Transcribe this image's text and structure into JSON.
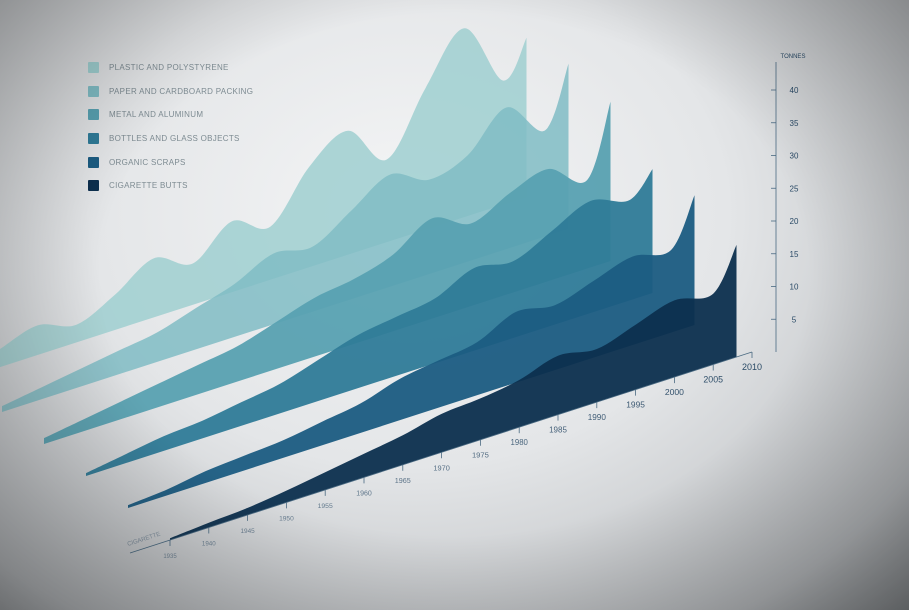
{
  "chart_data": {
    "type": "area",
    "title": "",
    "xlabel": "",
    "ylabel": "TONNES",
    "x_axis_start_label": "CIGARETTE",
    "xlim": [
      1935,
      2010
    ],
    "ylim": [
      0,
      40
    ],
    "x_ticks": [
      1935,
      1940,
      1945,
      1950,
      1955,
      1960,
      1965,
      1970,
      1975,
      1980,
      1985,
      1990,
      1995,
      2000,
      2005,
      2010
    ],
    "y_ticks": [
      5,
      10,
      15,
      20,
      25,
      30,
      35,
      40
    ],
    "grid": false,
    "legend_position": "top-left",
    "x": [
      1935,
      1940,
      1945,
      1950,
      1955,
      1960,
      1965,
      1970,
      1975,
      1980,
      1985,
      1990,
      1995,
      2000,
      2005,
      2008
    ],
    "series": [
      {
        "name": "PLASTIC AND POLYSTYRENE",
        "color": "#9fcfd0",
        "values": [
          1,
          3,
          5,
          3,
          6,
          10,
          7,
          12,
          9,
          17,
          21,
          14,
          24,
          32,
          21,
          27
        ]
      },
      {
        "name": "PAPER AND CARDBOARD PACKING",
        "color": "#80bcc4",
        "values": [
          1,
          2,
          3,
          4,
          5,
          7,
          9,
          12,
          11,
          15,
          19,
          16,
          18,
          24,
          18,
          28
        ]
      },
      {
        "name": "METAL AND ALUMINUM",
        "color": "#58a1b1",
        "values": [
          1,
          2,
          3,
          4,
          5,
          6,
          8,
          10,
          11,
          13,
          17,
          14,
          17,
          19,
          15,
          27
        ]
      },
      {
        "name": "BOTTLES AND GLASS OBJECTS",
        "color": "#2f7b98",
        "values": [
          0.5,
          1.5,
          2.5,
          3,
          4,
          5,
          7,
          9,
          10,
          11,
          14,
          13,
          16,
          19,
          17,
          21
        ]
      },
      {
        "name": "ORGANIC SCRAPS",
        "color": "#1b5c82",
        "values": [
          0.5,
          1,
          2,
          2.5,
          3,
          4,
          5,
          7,
          8,
          9,
          12,
          11,
          13,
          15,
          14,
          22
        ]
      },
      {
        "name": "CIGARETTE BUTTS",
        "color": "#0c2f4e",
        "values": [
          0.3,
          0.8,
          1.2,
          2,
          3,
          4,
          5,
          6.5,
          7,
          8,
          10,
          9,
          11,
          13,
          12,
          19
        ]
      }
    ]
  }
}
